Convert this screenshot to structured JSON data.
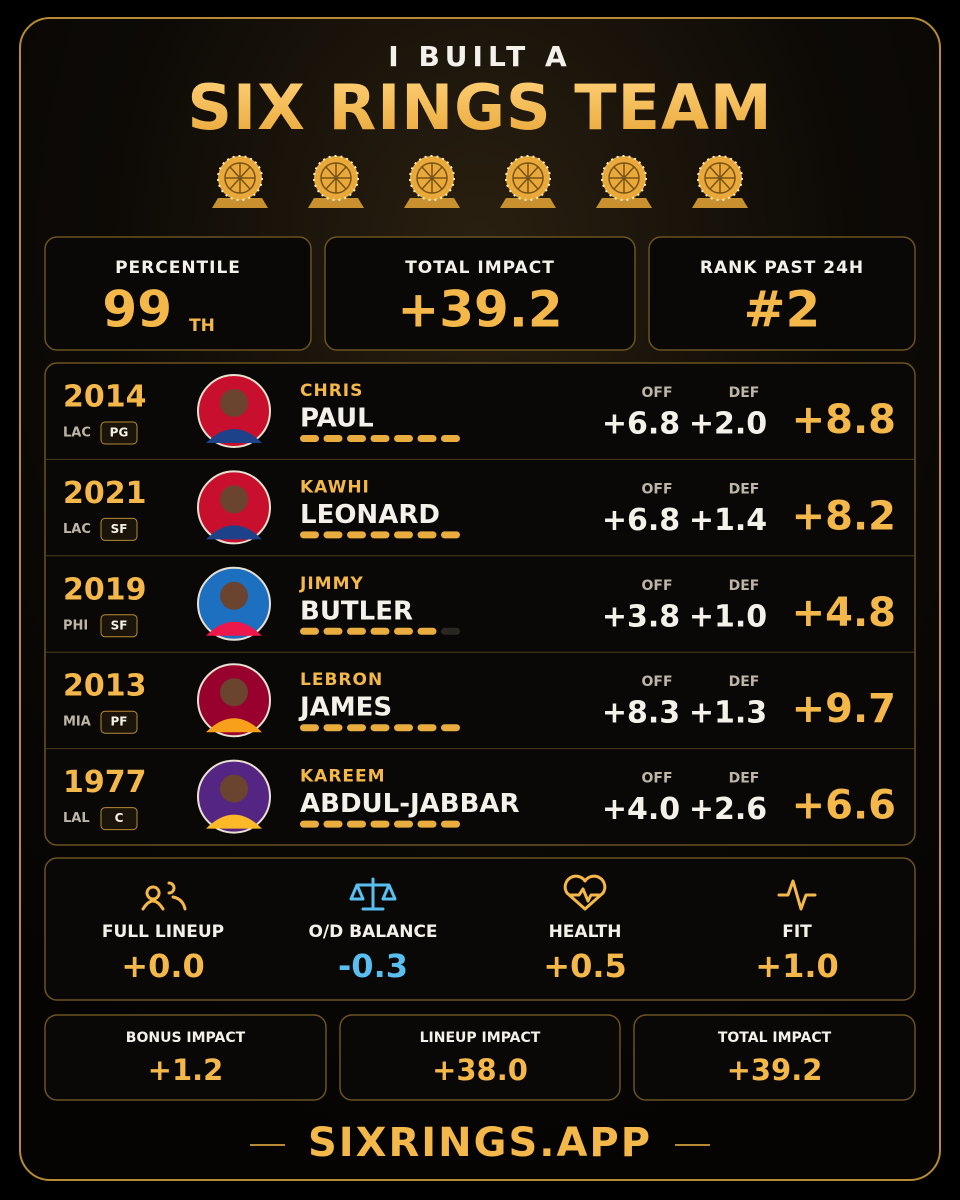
{
  "header": {
    "kicker": "I BUILT A",
    "title": "SIX RINGS TEAM"
  },
  "stats": [
    {
      "label": "PERCENTILE",
      "value": "99",
      "suffix": "TH"
    },
    {
      "label": "TOTAL IMPACT",
      "value": "+39.2"
    },
    {
      "label": "RANK PAST 24H",
      "value": "#2"
    }
  ],
  "columns": {
    "off": "OFF",
    "def": "DEF"
  },
  "bar_segments": 7,
  "players": [
    {
      "year": "2014",
      "team": "LAC",
      "position": "PG",
      "first": "CHRIS",
      "last": "PAUL",
      "off": "+6.8",
      "def": "+2.0",
      "total": "+8.8",
      "bar_filled": 7
    },
    {
      "year": "2021",
      "team": "LAC",
      "position": "SF",
      "first": "KAWHI",
      "last": "LEONARD",
      "off": "+6.8",
      "def": "+1.4",
      "total": "+8.2",
      "bar_filled": 7
    },
    {
      "year": "2019",
      "team": "PHI",
      "position": "SF",
      "first": "JIMMY",
      "last": "BUTLER",
      "off": "+3.8",
      "def": "+1.0",
      "total": "+4.8",
      "bar_filled": 6
    },
    {
      "year": "2013",
      "team": "MIA",
      "position": "PF",
      "first": "LEBRON",
      "last": "JAMES",
      "off": "+8.3",
      "def": "+1.3",
      "total": "+9.7",
      "bar_filled": 7
    },
    {
      "year": "1977",
      "team": "LAL",
      "position": "C",
      "first": "KAREEM",
      "last": "ABDUL-JABBAR",
      "off": "+4.0",
      "def": "+2.6",
      "total": "+6.6",
      "bar_filled": 7
    }
  ],
  "bonuses": [
    {
      "label": "FULL LINEUP",
      "value": "+0.0"
    },
    {
      "label": "O/D BALANCE",
      "value": "-0.3"
    },
    {
      "label": "HEALTH",
      "value": "+0.5"
    },
    {
      "label": "FIT",
      "value": "+1.0"
    }
  ],
  "summary": [
    {
      "label": "BONUS IMPACT",
      "value": "+1.2"
    },
    {
      "label": "LINEUP IMPACT",
      "value": "+38.0"
    },
    {
      "label": "TOTAL IMPACT",
      "value": "+39.2"
    }
  ],
  "footer": "SIXRINGS.APP"
}
